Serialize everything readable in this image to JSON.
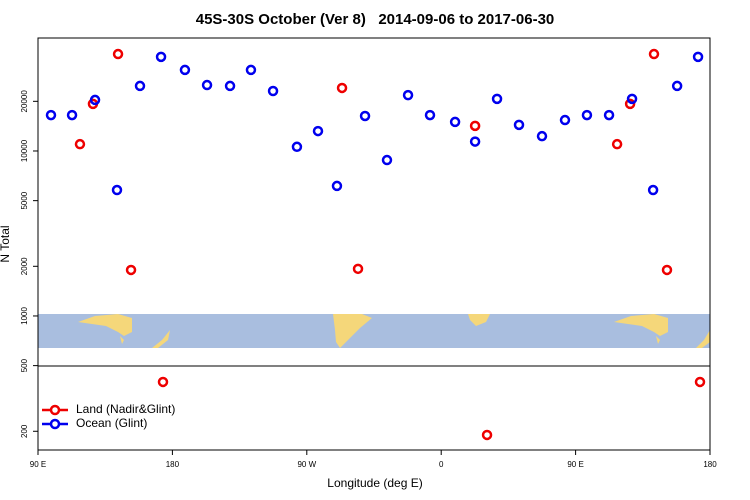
{
  "chart_data": {
    "type": "scatter",
    "title": "45S-30S October (Ver 8)   2014-09-06 to 2017-06-30",
    "x_label": "Longitude (deg E)",
    "y_label": "N Total",
    "xlim": [
      90,
      540
    ],
    "ylim": [
      154,
      48400
    ],
    "log_y": true,
    "legend": "lower left",
    "xticks": [
      {
        "value": 90,
        "label": "90 E"
      },
      {
        "value": 180,
        "label": "180"
      },
      {
        "value": 270,
        "label": "90 W"
      },
      {
        "value": 360,
        "label": "0"
      },
      {
        "value": 450,
        "label": "90 E"
      },
      {
        "value": 540,
        "label": "180"
      }
    ],
    "yticks": [
      200,
      500,
      1000,
      2000,
      5000,
      10000,
      20000
    ],
    "series": [
      {
        "name": "Land (Nadir&Glint)",
        "color": "#ee0000",
        "x": [
          118.1,
          126.8,
          143.6,
          152.3,
          173.7,
          293.6,
          304.3,
          382.7,
          390.7,
          477.8,
          486.5,
          502.5,
          511.2,
          533.3
        ],
        "values": [
          11000,
          19300,
          38700,
          1900,
          398,
          24100,
          1930,
          14200,
          190,
          11000,
          19300,
          38700,
          1900,
          398
        ]
      },
      {
        "name": "Ocean (Glint)",
        "color": "#0000ee",
        "x": [
          98.7,
          112.8,
          128.2,
          142.9,
          172.4,
          158.3,
          188.4,
          203.2,
          218.6,
          232.6,
          247.4,
          263.4,
          277.5,
          290.2,
          309.0,
          323.7,
          337.8,
          352.5,
          369.3,
          382.7,
          397.4,
          412.1,
          427.5,
          442.9,
          457.6,
          472.4,
          487.8,
          501.9,
          518.0,
          532.0
        ],
        "values": [
          16500,
          16500,
          20400,
          5800,
          37200,
          24800,
          31000,
          25100,
          24800,
          31000,
          23100,
          10600,
          13200,
          6140,
          16300,
          8810,
          21800,
          16500,
          15000,
          11400,
          20700,
          14400,
          12300,
          15400,
          16500,
          16500,
          20700,
          5800,
          24800,
          37200
        ]
      }
    ]
  }
}
